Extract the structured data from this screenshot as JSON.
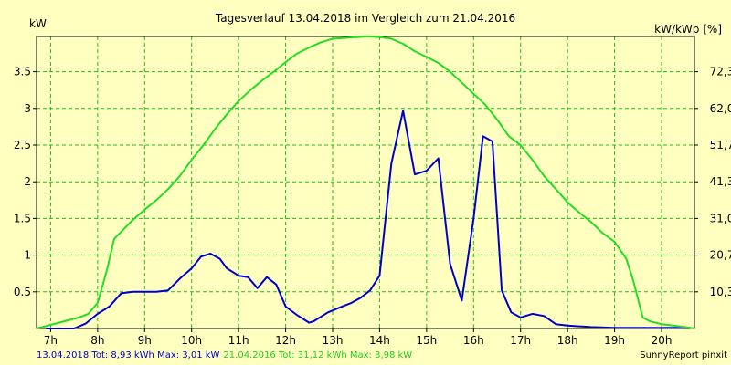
{
  "chart_data": {
    "type": "line",
    "title": "Tagesverlauf 13.04.2018 im Vergleich zum 21.04.2016",
    "ylabel_left": "kW",
    "ylabel_right": "kW/kWp [%]",
    "xlim": [
      6.7,
      20.7
    ],
    "ylim": [
      0,
      3.98
    ],
    "x_ticks": [
      7,
      8,
      9,
      10,
      11,
      12,
      13,
      14,
      15,
      16,
      17,
      18,
      19,
      20
    ],
    "x_tick_labels": [
      "7h",
      "8h",
      "9h",
      "10h",
      "11h",
      "12h",
      "13h",
      "14h",
      "15h",
      "16h",
      "17h",
      "18h",
      "19h",
      "20h"
    ],
    "y_ticks_left": [
      0.5,
      1,
      1.5,
      2,
      2.5,
      3,
      3.5
    ],
    "y_tick_labels_left": [
      "0.5",
      "1",
      "1.5",
      "2",
      "2.5",
      "3",
      "3.5"
    ],
    "y_tick_labels_right": [
      "10,3",
      "20,7",
      "31,0",
      "41,3",
      "51,7",
      "62,0",
      "72,3"
    ],
    "grid": true,
    "series": [
      {
        "name": "13.04.2018",
        "color": "#0000cc",
        "x": [
          6.9,
          7.5,
          7.75,
          8.0,
          8.25,
          8.5,
          8.75,
          9.0,
          9.25,
          9.5,
          9.75,
          10.0,
          10.2,
          10.4,
          10.6,
          10.75,
          11.0,
          11.2,
          11.4,
          11.6,
          11.8,
          12.0,
          12.25,
          12.5,
          12.6,
          12.9,
          13.2,
          13.4,
          13.6,
          13.8,
          14.0,
          14.25,
          14.5,
          14.75,
          15.0,
          15.25,
          15.5,
          15.75,
          16.0,
          16.2,
          16.4,
          16.6,
          16.8,
          17.0,
          17.25,
          17.5,
          17.75,
          18.0,
          18.5,
          19.0,
          19.5,
          20.0,
          20.5
        ],
        "values": [
          0,
          0,
          0.07,
          0.2,
          0.3,
          0.48,
          0.5,
          0.5,
          0.5,
          0.52,
          0.68,
          0.82,
          0.98,
          1.02,
          0.95,
          0.82,
          0.72,
          0.7,
          0.55,
          0.7,
          0.6,
          0.3,
          0.18,
          0.08,
          0.1,
          0.22,
          0.3,
          0.35,
          0.42,
          0.52,
          0.72,
          2.25,
          2.97,
          2.1,
          2.15,
          2.32,
          0.88,
          0.38,
          1.5,
          2.62,
          2.55,
          0.52,
          0.22,
          0.15,
          0.2,
          0.17,
          0.06,
          0.04,
          0.02,
          0.01,
          0.01,
          0.01,
          0.01
        ]
      },
      {
        "name": "21.04.2016",
        "color": "#22dd22",
        "x": [
          6.7,
          7.0,
          7.3,
          7.6,
          7.8,
          8.0,
          8.2,
          8.35,
          8.5,
          8.75,
          9.0,
          9.25,
          9.5,
          9.75,
          10.0,
          10.25,
          10.5,
          10.75,
          11.0,
          11.25,
          11.5,
          11.75,
          12.0,
          12.25,
          12.5,
          12.75,
          13.0,
          13.25,
          13.5,
          13.75,
          14.0,
          14.25,
          14.5,
          14.75,
          15.0,
          15.25,
          15.5,
          15.75,
          16.0,
          16.25,
          16.5,
          16.75,
          17.0,
          17.25,
          17.5,
          17.75,
          18.0,
          18.25,
          18.5,
          18.75,
          19.0,
          19.25,
          19.4,
          19.6,
          19.75,
          20.0,
          20.25,
          20.5,
          20.7
        ],
        "values": [
          0,
          0.05,
          0.1,
          0.15,
          0.2,
          0.35,
          0.8,
          1.22,
          1.32,
          1.48,
          1.62,
          1.75,
          1.9,
          2.08,
          2.3,
          2.5,
          2.72,
          2.92,
          3.1,
          3.25,
          3.38,
          3.5,
          3.63,
          3.75,
          3.83,
          3.9,
          3.95,
          3.96,
          3.97,
          3.98,
          3.97,
          3.95,
          3.88,
          3.78,
          3.7,
          3.62,
          3.5,
          3.35,
          3.2,
          3.05,
          2.85,
          2.62,
          2.5,
          2.3,
          2.08,
          1.9,
          1.72,
          1.58,
          1.45,
          1.3,
          1.18,
          0.95,
          0.65,
          0.15,
          0.1,
          0.06,
          0.04,
          0.02,
          0
        ]
      }
    ]
  },
  "footer": {
    "series1_text": "13.04.2018 Tot: 8,93 kWh Max: 3,01 kW",
    "series2_text": "21.04.2016 Tot: 31,12 kWh Max: 3,98 kW",
    "credit": "SunnyReport pinxit"
  }
}
